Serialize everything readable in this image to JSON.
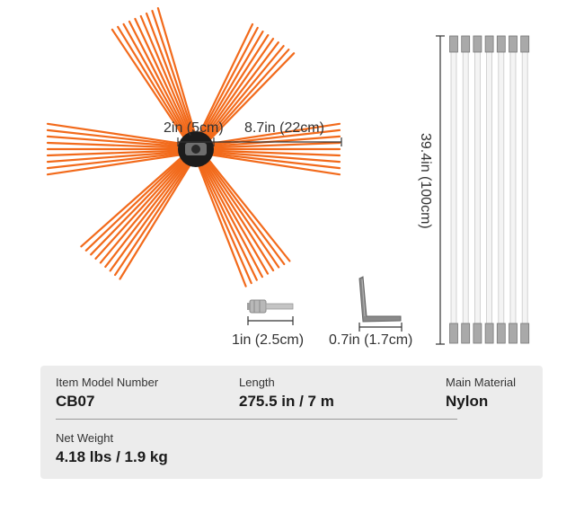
{
  "dimensions": {
    "hub_diameter": "2in (5cm)",
    "bristle_length": "8.7in (22cm)",
    "rod_length": "39.4in (100cm)",
    "adapter_length": "1in (2.5cm)",
    "wrench_size": "0.7in (1.7cm)"
  },
  "specs": {
    "model": {
      "label": "Item Model Number",
      "value": "CB07"
    },
    "length": {
      "label": "Length",
      "value": "275.5 in / 7 m"
    },
    "material": {
      "label": "Main Material",
      "value": "Nylon"
    },
    "weight": {
      "label": "Net Weight",
      "value": "4.18 lbs / 1.9 kg"
    }
  },
  "colors": {
    "bristle": "#f26a1b",
    "hub": "#1c1c1c",
    "rod": "#f2f2f2",
    "card_bg": "#ececec"
  }
}
